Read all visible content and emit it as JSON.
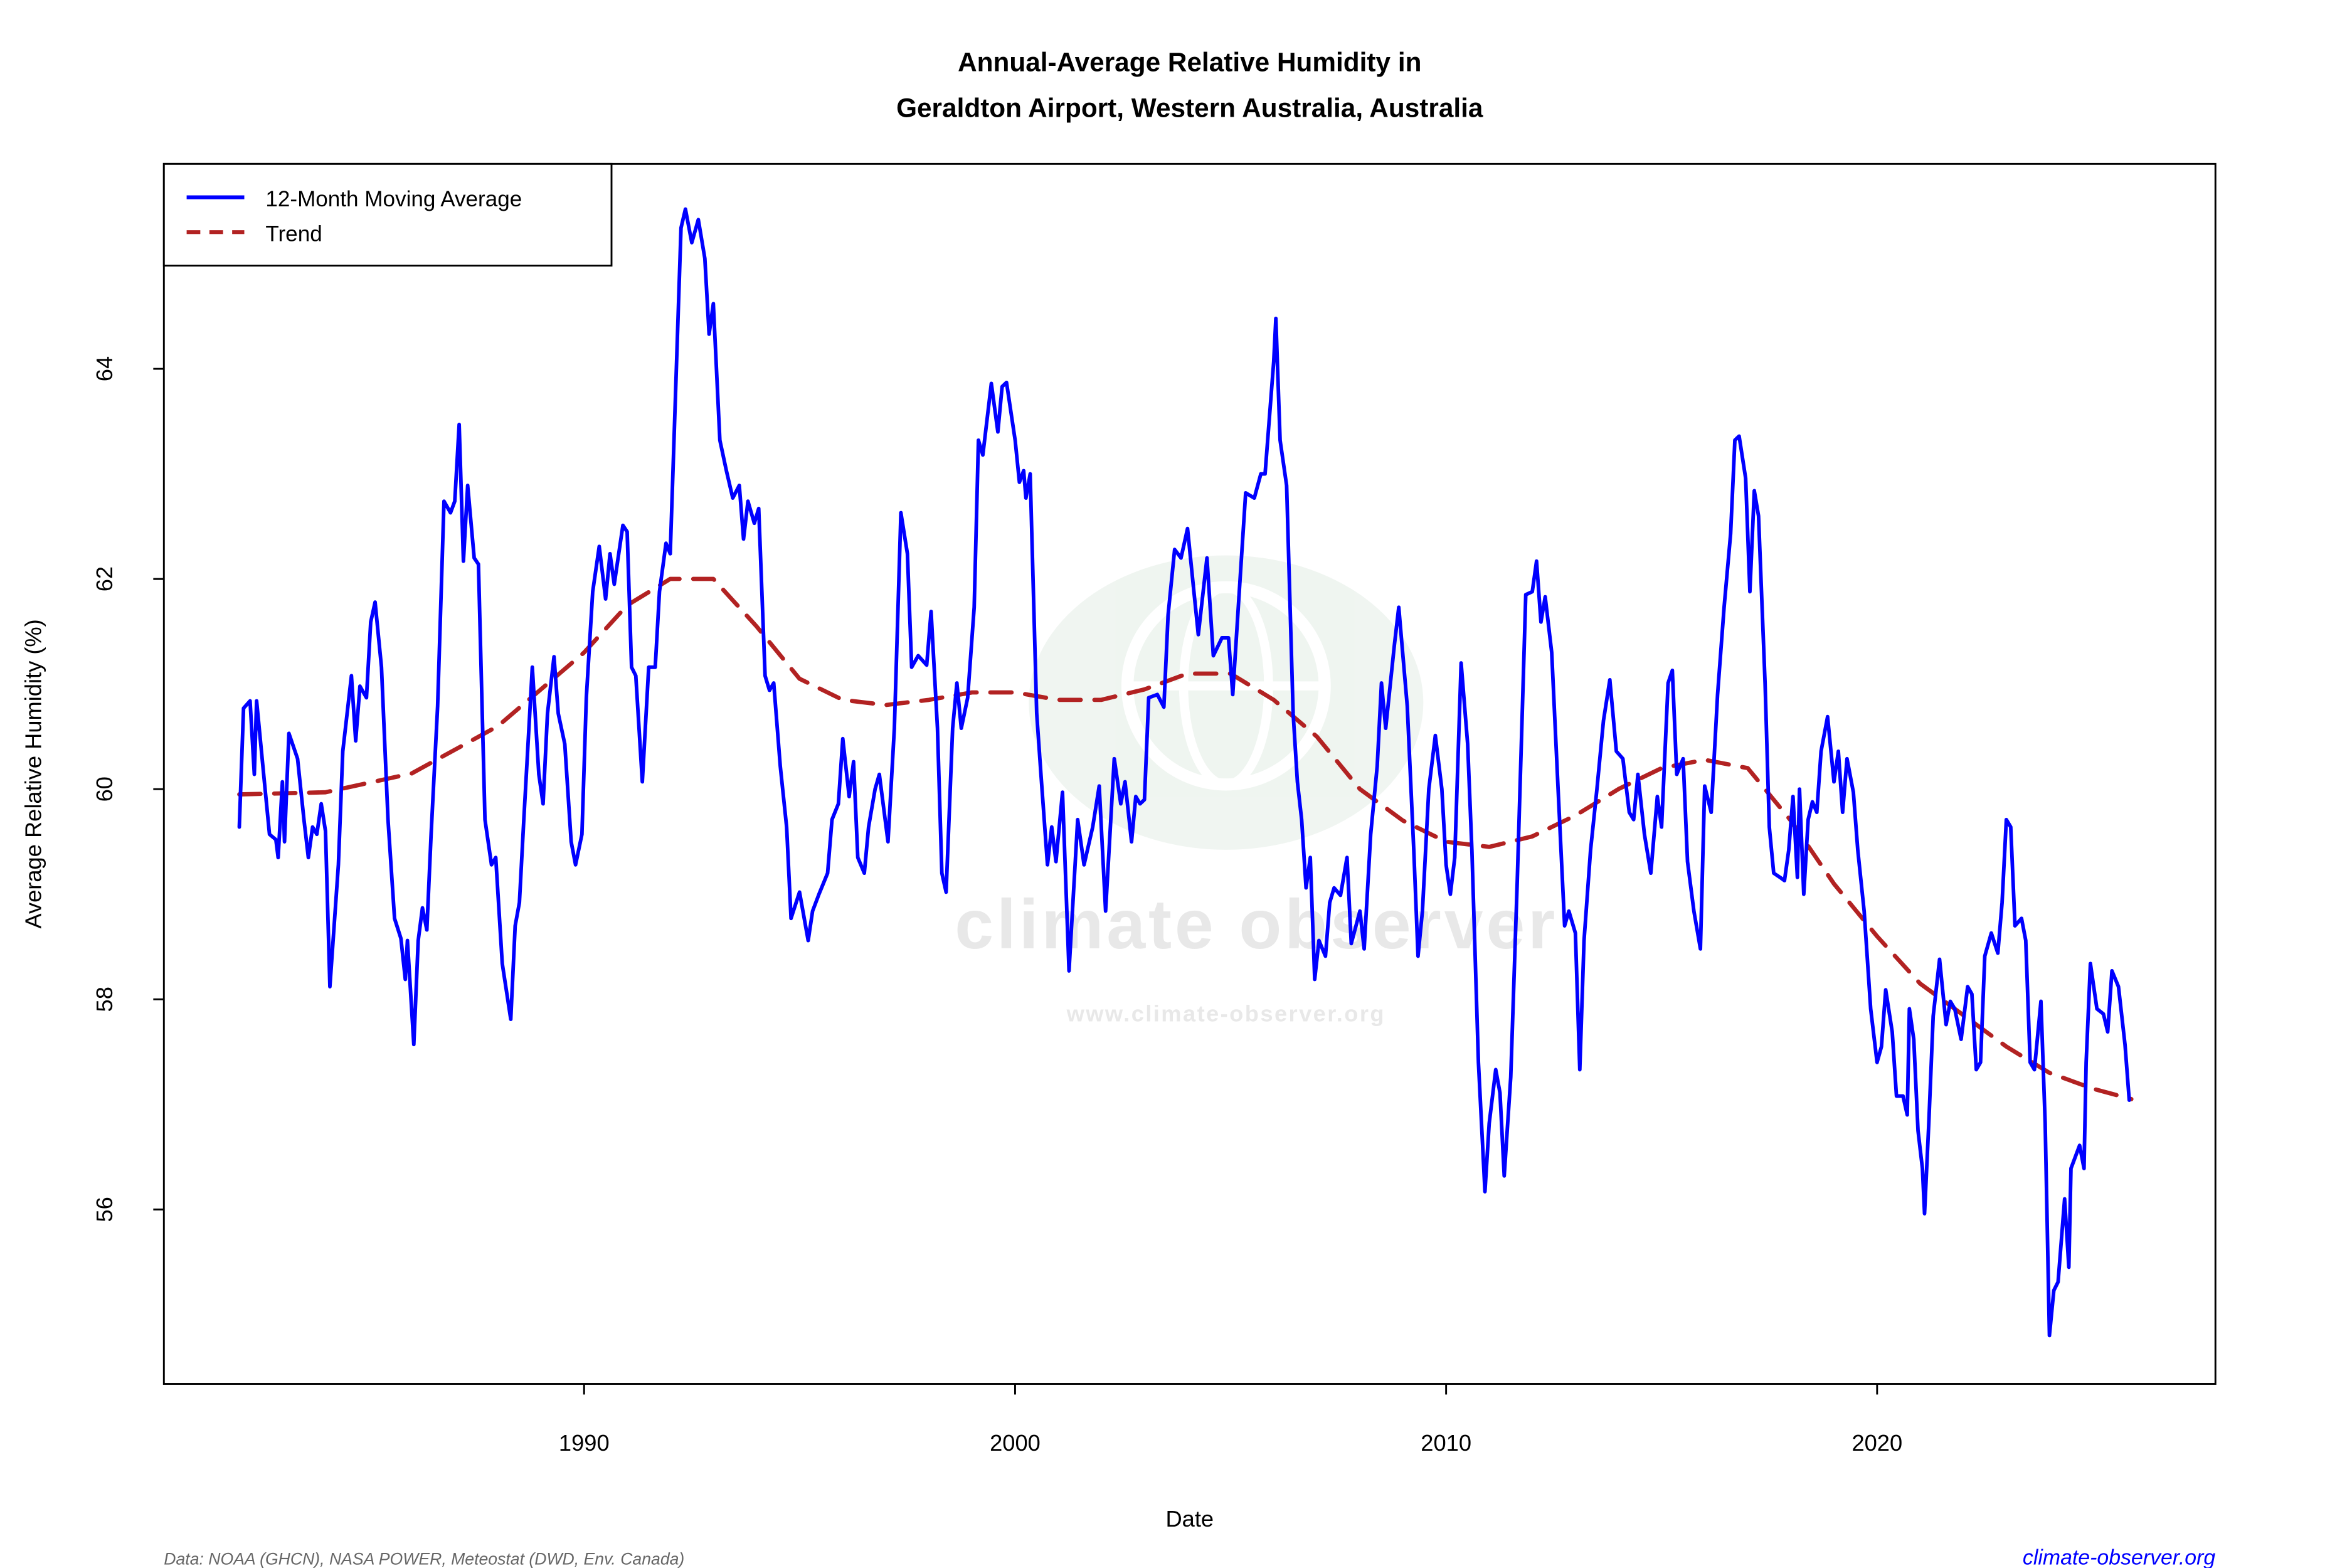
{
  "chart_data": {
    "type": "line",
    "title": [
      "Annual-Average Relative Humidity in",
      "Geraldton Airport, Western Australia, Australia"
    ],
    "xlabel": "Date",
    "ylabel": "Average Relative Humidity (%)",
    "xlim": [
      1980.25,
      2027.85
    ],
    "ylim": [
      54.34,
      65.95
    ],
    "x_ticks": [
      1990,
      2000,
      2010,
      2020
    ],
    "y_ticks": [
      56,
      58,
      60,
      62,
      64
    ],
    "grid": false,
    "legend_position": "top-left",
    "colors": {
      "moving_average": "#0000ff",
      "trend": "#b22222",
      "footer_text": "#666666",
      "footer_link": "#0000ff"
    },
    "series": [
      {
        "name": "12-Month Moving Average",
        "style": "solid",
        "x": [
          1982.0,
          1982.1,
          1982.25,
          1982.35,
          1982.4,
          1982.6,
          1982.7,
          1982.85,
          1982.9,
          1983.0,
          1983.05,
          1983.15,
          1983.35,
          1983.5,
          1983.6,
          1983.7,
          1983.8,
          1983.9,
          1984.0,
          1984.1,
          1984.3,
          1984.4,
          1984.6,
          1984.7,
          1984.8,
          1984.95,
          1985.05,
          1985.15,
          1985.3,
          1985.45,
          1985.6,
          1985.75,
          1985.85,
          1985.9,
          1986.05,
          1986.15,
          1986.25,
          1986.35,
          1986.45,
          1986.6,
          1986.75,
          1986.9,
          1987.0,
          1987.1,
          1987.2,
          1987.3,
          1987.45,
          1987.55,
          1987.7,
          1987.85,
          1987.95,
          1988.1,
          1988.3,
          1988.4,
          1988.5,
          1988.6,
          1988.8,
          1988.95,
          1989.05,
          1989.15,
          1989.3,
          1989.4,
          1989.55,
          1989.7,
          1989.8,
          1989.95,
          1990.05,
          1990.2,
          1990.35,
          1990.5,
          1990.6,
          1990.7,
          1990.9,
          1991.0,
          1991.1,
          1991.2,
          1991.35,
          1991.5,
          1991.65,
          1991.75,
          1991.9,
          1992.0,
          1992.15,
          1992.25,
          1992.35,
          1992.5,
          1992.65,
          1992.8,
          1992.9,
          1993.0,
          1993.15,
          1993.3,
          1993.45,
          1993.6,
          1993.7,
          1993.8,
          1993.95,
          1994.05,
          1994.2,
          1994.3,
          1994.4,
          1994.55,
          1994.7,
          1994.8,
          1995.0,
          1995.2,
          1995.3,
          1995.45,
          1995.65,
          1995.75,
          1995.9,
          1996.0,
          1996.15,
          1996.25,
          1996.35,
          1996.5,
          1996.6,
          1996.75,
          1996.85,
          1997.05,
          1997.2,
          1997.35,
          1997.5,
          1997.6,
          1997.75,
          1997.95,
          1998.05,
          1998.2,
          1998.3,
          1998.4,
          1998.55,
          1998.65,
          1998.75,
          1998.9,
          1999.05,
          1999.15,
          1999.25,
          1999.45,
          1999.6,
          1999.7,
          1999.8,
          2000.0,
          2000.1,
          2000.2,
          2000.25,
          2000.35,
          2000.5,
          2000.6,
          2000.75,
          2000.85,
          2000.95,
          2001.1,
          2001.25,
          2001.45,
          2001.6,
          2001.8,
          2001.95,
          2002.1,
          2002.3,
          2002.45,
          2002.55,
          2002.7,
          2002.8,
          2002.9,
          2003.0,
          2003.1,
          2003.3,
          2003.45,
          2003.55,
          2003.7,
          2003.85,
          2004.0,
          2004.15,
          2004.25,
          2004.45,
          2004.6,
          2004.8,
          2004.95,
          2005.05,
          2005.2,
          2005.35,
          2005.55,
          2005.7,
          2005.8,
          2006.0,
          2006.05,
          2006.15,
          2006.3,
          2006.45,
          2006.55,
          2006.65,
          2006.75,
          2006.85,
          2006.95,
          2007.05,
          2007.2,
          2007.3,
          2007.4,
          2007.55,
          2007.7,
          2007.8,
          2008.0,
          2008.1,
          2008.25,
          2008.4,
          2008.5,
          2008.6,
          2008.8,
          2008.9,
          2009.1,
          2009.25,
          2009.35,
          2009.45,
          2009.6,
          2009.75,
          2009.9,
          2010.0,
          2010.1,
          2010.2,
          2010.35,
          2010.5,
          2010.6,
          2010.75,
          2010.9,
          2011.0,
          2011.15,
          2011.25,
          2011.35,
          2011.5,
          2011.65,
          2011.85,
          2012.0,
          2012.1,
          2012.2,
          2012.3,
          2012.45,
          2012.6,
          2012.75,
          2012.85,
          2013.0,
          2013.1,
          2013.2,
          2013.35,
          2013.5,
          2013.65,
          2013.8,
          2013.95,
          2014.1,
          2014.25,
          2014.35,
          2014.45,
          2014.6,
          2014.75,
          2014.9,
          2015.0,
          2015.15,
          2015.25,
          2015.35,
          2015.5,
          2015.6,
          2015.75,
          2015.9,
          2016.0,
          2016.15,
          2016.3,
          2016.45,
          2016.6,
          2016.7,
          2016.8,
          2016.95,
          2017.05,
          2017.15,
          2017.25,
          2017.4,
          2017.5,
          2017.6,
          2017.75,
          2017.85,
          2017.95,
          2018.05,
          2018.15,
          2018.2,
          2018.3,
          2018.4,
          2018.5,
          2018.6,
          2018.7,
          2018.85,
          2019.0,
          2019.1,
          2019.2,
          2019.3,
          2019.45,
          2019.55,
          2019.7,
          2019.85,
          2020.0,
          2020.1,
          2020.2,
          2020.35,
          2020.45,
          2020.6,
          2020.7,
          2020.75,
          2020.85,
          2020.95,
          2021.05,
          2021.1,
          2021.2,
          2021.3,
          2021.45,
          2021.6,
          2021.7,
          2021.8,
          2021.95,
          2022.1,
          2022.2,
          2022.3,
          2022.4,
          2022.5,
          2022.65,
          2022.8,
          2022.9,
          2023.0,
          2023.1,
          2023.2,
          2023.35,
          2023.45,
          2023.55,
          2023.65,
          2023.8,
          2023.9,
          2024.0,
          2024.1,
          2024.2,
          2024.35,
          2024.45,
          2024.5,
          2024.7,
          2024.8,
          2024.85,
          2024.95,
          2025.1,
          2025.25,
          2025.35,
          2025.45,
          2025.6,
          2025.75,
          2025.85
        ],
        "y": [
          59.64,
          60.77,
          60.84,
          60.14,
          60.84,
          60.0,
          59.57,
          59.52,
          59.35,
          60.07,
          59.5,
          60.53,
          60.29,
          59.71,
          59.35,
          59.64,
          59.57,
          59.86,
          59.6,
          58.12,
          59.28,
          60.36,
          61.08,
          60.46,
          60.98,
          60.87,
          61.59,
          61.78,
          61.16,
          59.71,
          58.77,
          58.58,
          58.19,
          58.56,
          57.57,
          58.56,
          58.87,
          58.66,
          59.57,
          60.79,
          62.74,
          62.63,
          62.74,
          63.47,
          62.17,
          62.89,
          62.2,
          62.14,
          59.71,
          59.28,
          59.35,
          58.34,
          57.81,
          58.7,
          58.92,
          59.71,
          61.16,
          60.14,
          59.86,
          60.72,
          61.26,
          60.72,
          60.43,
          59.5,
          59.28,
          59.57,
          60.87,
          61.88,
          62.31,
          61.81,
          62.24,
          61.95,
          62.51,
          62.45,
          61.16,
          61.08,
          60.07,
          61.16,
          61.16,
          61.88,
          62.34,
          62.24,
          64.12,
          65.34,
          65.52,
          65.2,
          65.42,
          65.05,
          64.33,
          64.62,
          63.32,
          63.03,
          62.77,
          62.89,
          62.38,
          62.74,
          62.53,
          62.67,
          61.08,
          60.94,
          61.01,
          60.22,
          59.64,
          58.77,
          59.02,
          58.56,
          58.84,
          59.0,
          59.2,
          59.71,
          59.86,
          60.48,
          59.93,
          60.26,
          59.35,
          59.2,
          59.64,
          60.0,
          60.14,
          59.5,
          60.58,
          62.63,
          62.24,
          61.16,
          61.27,
          61.18,
          61.69,
          60.58,
          59.2,
          59.02,
          60.58,
          61.01,
          60.58,
          60.87,
          61.73,
          63.32,
          63.18,
          63.86,
          63.4,
          63.83,
          63.87,
          63.32,
          62.92,
          63.03,
          62.77,
          63.0,
          60.72,
          60.14,
          59.28,
          59.64,
          59.31,
          59.97,
          58.27,
          59.71,
          59.28,
          59.64,
          60.03,
          58.84,
          60.29,
          59.86,
          60.07,
          59.5,
          59.93,
          59.86,
          59.9,
          60.87,
          60.9,
          60.78,
          61.66,
          62.28,
          62.2,
          62.48,
          61.88,
          61.47,
          62.2,
          61.27,
          61.44,
          61.44,
          60.9,
          61.88,
          62.82,
          62.77,
          63.0,
          63.0,
          64.07,
          64.48,
          63.32,
          62.89,
          60.72,
          60.07,
          59.71,
          59.06,
          59.35,
          58.19,
          58.56,
          58.41,
          58.92,
          59.06,
          58.99,
          59.35,
          58.53,
          58.84,
          58.48,
          59.57,
          60.22,
          61.01,
          60.58,
          61.37,
          61.73,
          60.79,
          59.42,
          58.41,
          58.84,
          60.0,
          60.51,
          60.0,
          59.28,
          59.0,
          59.35,
          61.2,
          60.43,
          59.42,
          57.4,
          56.17,
          56.82,
          57.33,
          57.11,
          56.32,
          57.26,
          59.13,
          61.85,
          61.88,
          62.17,
          61.59,
          61.83,
          61.3,
          60.0,
          58.7,
          58.84,
          58.63,
          57.33,
          58.56,
          59.42,
          60.0,
          60.65,
          61.04,
          60.36,
          60.29,
          59.78,
          59.71,
          60.14,
          59.57,
          59.2,
          59.93,
          59.64,
          61.01,
          61.13,
          60.14,
          60.29,
          59.31,
          58.84,
          58.48,
          60.03,
          59.78,
          60.9,
          61.73,
          62.43,
          63.32,
          63.36,
          62.96,
          61.88,
          62.84,
          62.6,
          61.01,
          59.64,
          59.2,
          59.16,
          59.13,
          59.42,
          59.93,
          59.16,
          60.0,
          59.0,
          59.71,
          59.88,
          59.78,
          60.36,
          60.69,
          60.07,
          60.36,
          59.78,
          60.29,
          59.97,
          59.42,
          58.84,
          57.91,
          57.4,
          57.55,
          58.09,
          57.69,
          57.08,
          57.08,
          56.9,
          57.91,
          57.62,
          56.75,
          56.39,
          55.96,
          56.82,
          57.84,
          58.38,
          57.76,
          57.98,
          57.91,
          57.62,
          58.12,
          58.05,
          57.33,
          57.4,
          58.41,
          58.63,
          58.44,
          58.92,
          59.71,
          59.64,
          58.7,
          58.77,
          58.56,
          57.4,
          57.33,
          57.98,
          56.82,
          54.8,
          55.23,
          55.31,
          56.1,
          55.45,
          56.39,
          56.61,
          56.39,
          57.4,
          58.34,
          57.91,
          57.86,
          57.69,
          58.27,
          58.12,
          57.57,
          57.04
        ]
      },
      {
        "name": "Trend",
        "style": "dashed",
        "x": [
          1982,
          1984,
          1986,
          1988,
          1990,
          1991,
          1992,
          1993,
          1994,
          1995,
          1996,
          1997,
          1998,
          1999,
          2000,
          2001,
          2002,
          2003,
          2004,
          2005,
          2006,
          2007,
          2008,
          2009,
          2010,
          2011,
          2012,
          2013,
          2014,
          2015,
          2016,
          2017,
          2018,
          2019,
          2020,
          2021,
          2022,
          2023,
          2024,
          2025,
          2025.9
        ],
        "y": [
          59.95,
          59.97,
          60.15,
          60.6,
          61.3,
          61.75,
          62.0,
          62.0,
          61.55,
          61.05,
          60.85,
          60.8,
          60.85,
          60.92,
          60.92,
          60.85,
          60.85,
          60.95,
          61.1,
          61.1,
          60.85,
          60.5,
          60.0,
          59.7,
          59.5,
          59.45,
          59.55,
          59.75,
          60.0,
          60.2,
          60.28,
          60.2,
          59.7,
          59.1,
          58.6,
          58.15,
          57.85,
          57.55,
          57.3,
          57.15,
          57.05
        ]
      }
    ]
  },
  "legend": {
    "items": [
      "12-Month Moving Average",
      "Trend"
    ]
  },
  "watermark": {
    "brand": "climate observer",
    "url": "www.climate-observer.org"
  },
  "footer": {
    "source": "Data: NOAA (GHCN), NASA POWER, Meteostat (DWD, Env. Canada)",
    "site": "climate-observer.org"
  }
}
